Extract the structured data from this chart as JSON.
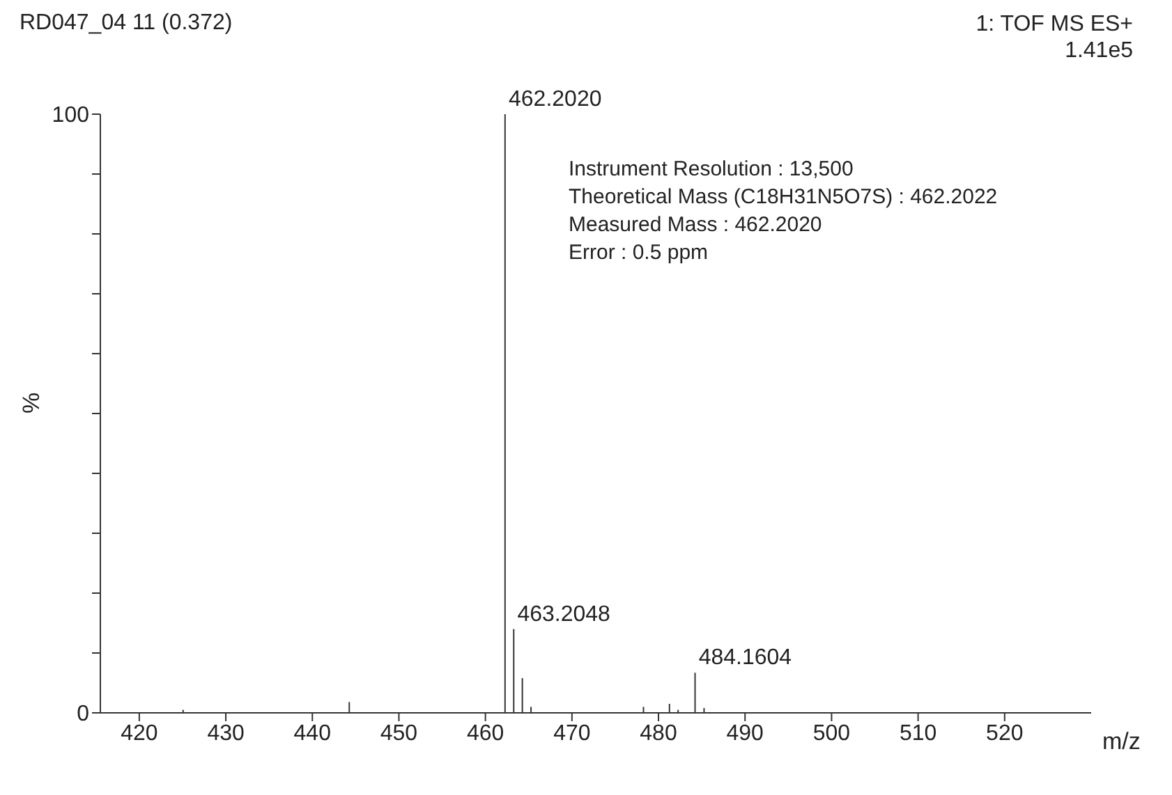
{
  "chart_data": {
    "type": "bar",
    "title": "RD047_04 11 (0.372)",
    "subtitle": "1: TOF MS ES+\n1.41e5",
    "xlabel": "m/z",
    "ylabel": "%",
    "x": [
      425.0,
      444.2,
      462.202,
      463.2048,
      464.2,
      465.2,
      478.2,
      481.2,
      482.2,
      484.1604,
      485.2
    ],
    "values": [
      0.5,
      1.8,
      100,
      14,
      5.8,
      1,
      1,
      1.5,
      0.5,
      6.7,
      0.8
    ],
    "color": "#333333",
    "xlim": [
      415.5,
      530
    ],
    "xticks": [
      420,
      430,
      440,
      450,
      460,
      470,
      480,
      490,
      500,
      510,
      520
    ],
    "ylim": [
      0,
      100
    ],
    "yticks": [
      0,
      {
        "value": 10,
        "label": null
      },
      {
        "value": 20,
        "label": null
      },
      {
        "value": 30,
        "label": null
      },
      {
        "value": 40,
        "label": null
      },
      {
        "value": 50,
        "label": null
      },
      {
        "value": 60,
        "label": null
      },
      {
        "value": 70,
        "label": null
      },
      {
        "value": 80,
        "label": null
      },
      {
        "value": 90,
        "label": null
      },
      100
    ],
    "grid": false,
    "legend": false,
    "annotations": [
      {
        "text": "462.2020",
        "x": 462.202,
        "y": 100
      },
      {
        "text": "463.2048",
        "x": 463.2048,
        "y": 14
      },
      {
        "text": "484.1604",
        "x": 484.1604,
        "y": 6.7
      },
      "Instrument Resolution : 13,500",
      "Theoretical Mass (C18H31N5O7S) : 462.2022",
      "Measured Mass : 462.2020",
      "Error : 0.5 ppm"
    ]
  }
}
